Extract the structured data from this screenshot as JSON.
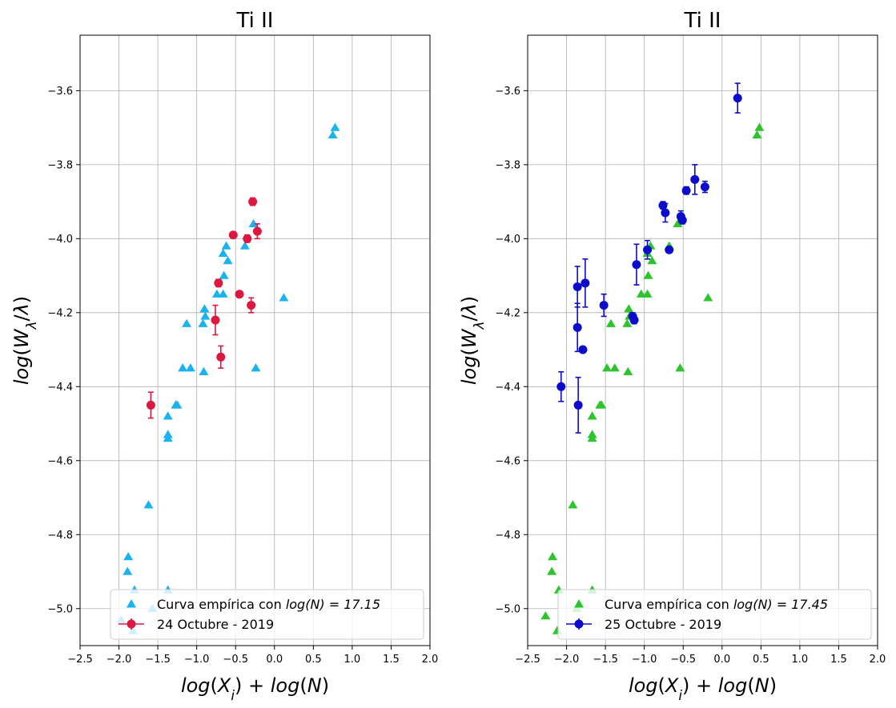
{
  "chart_data": [
    {
      "type": "scatter",
      "title": "Ti II",
      "xlabel": "log(X_i) + log(N)",
      "ylabel": "log(W_λ/λ)",
      "xlim": [
        -2.5,
        2.0
      ],
      "ylim": [
        -5.1,
        -3.45
      ],
      "xticks": [
        -2.5,
        -2.0,
        -1.5,
        -1.0,
        -0.5,
        0.0,
        0.5,
        1.0,
        1.5,
        2.0
      ],
      "xtick_labels": [
        "−2.5",
        "−2.0",
        "−1.5",
        "−1.0",
        "−0.5",
        "0.0",
        "0.5",
        "1.0",
        "1.5",
        "2.0"
      ],
      "yticks": [
        -5.0,
        -4.8,
        -4.6,
        -4.4,
        -4.2,
        -4.0,
        -3.8,
        -3.6
      ],
      "ytick_labels": [
        "−5.0",
        "−4.8",
        "−4.6",
        "−4.4",
        "−4.2",
        "−4.0",
        "−3.8",
        "−3.6"
      ],
      "grid": true,
      "legend_position": "lower-right",
      "series": [
        {
          "name": "Curva empírica con log(N) = 17.15",
          "legend_prefix": "Curva empírica con ",
          "legend_math": "log(N) = 17.15",
          "marker": "triangle",
          "color": "#1ab3ee",
          "points": [
            [
              0.78,
              -3.7
            ],
            [
              0.75,
              -3.72
            ],
            [
              -0.27,
              -3.96
            ],
            [
              -0.38,
              -4.02
            ],
            [
              -0.62,
              -4.02
            ],
            [
              -0.66,
              -4.04
            ],
            [
              -0.6,
              -4.06
            ],
            [
              0.12,
              -4.16
            ],
            [
              -0.65,
              -4.1
            ],
            [
              -0.74,
              -4.15
            ],
            [
              -0.66,
              -4.15
            ],
            [
              -0.9,
              -4.19
            ],
            [
              -1.13,
              -4.23
            ],
            [
              -0.92,
              -4.23
            ],
            [
              -0.89,
              -4.21
            ],
            [
              -1.08,
              -4.35
            ],
            [
              -1.18,
              -4.35
            ],
            [
              -0.91,
              -4.36
            ],
            [
              -0.24,
              -4.35
            ],
            [
              -1.27,
              -4.45
            ],
            [
              -1.25,
              -4.45
            ],
            [
              -1.37,
              -4.48
            ],
            [
              -1.37,
              -4.53
            ],
            [
              -1.37,
              -4.54
            ],
            [
              -1.62,
              -4.72
            ],
            [
              -1.88,
              -4.86
            ],
            [
              -1.89,
              -4.9
            ],
            [
              -1.8,
              -4.95
            ],
            [
              -1.57,
              -5.0
            ],
            [
              -1.82,
              -5.06
            ],
            [
              -1.37,
              -4.95
            ],
            [
              -1.97,
              -5.03
            ]
          ]
        },
        {
          "name": "24 Octubre - 2019",
          "marker": "circle-errorbar",
          "color": "#dc1740",
          "points": [
            [
              -0.28,
              -3.9,
              0.01
            ],
            [
              -0.53,
              -3.99,
              0.005
            ],
            [
              -0.35,
              -4.0,
              0.01
            ],
            [
              -0.22,
              -3.98,
              0.02
            ],
            [
              -0.72,
              -4.12,
              0.01
            ],
            [
              -0.45,
              -4.15,
              0.005
            ],
            [
              -0.76,
              -4.22,
              0.04
            ],
            [
              -0.3,
              -4.18,
              0.02
            ],
            [
              -0.69,
              -4.32,
              0.03
            ],
            [
              -1.59,
              -4.45,
              0.035
            ]
          ]
        }
      ]
    },
    {
      "type": "scatter",
      "title": "Ti II",
      "xlabel": "log(X_i) + log(N)",
      "ylabel": "log(W_λ/λ)",
      "xlim": [
        -2.5,
        2.0
      ],
      "ylim": [
        -5.1,
        -3.45
      ],
      "xticks": [
        -2.5,
        -2.0,
        -1.5,
        -1.0,
        -0.5,
        0.0,
        0.5,
        1.0,
        1.5,
        2.0
      ],
      "xtick_labels": [
        "−2.5",
        "−2.0",
        "−1.5",
        "−1.0",
        "−0.5",
        "0.0",
        "0.5",
        "1.0",
        "1.5",
        "2.0"
      ],
      "yticks": [
        -5.0,
        -4.8,
        -4.6,
        -4.4,
        -4.2,
        -4.0,
        -3.8,
        -3.6
      ],
      "ytick_labels": [
        "−5.0",
        "−4.8",
        "−4.6",
        "−4.4",
        "−4.2",
        "−4.0",
        "−3.8",
        "−3.6"
      ],
      "grid": true,
      "legend_position": "lower-right",
      "series": [
        {
          "name": "Curva empírica con log(N) = 17.45",
          "legend_prefix": "Curva empírica con ",
          "legend_math": "log(N) = 17.45",
          "marker": "triangle",
          "color": "#2ec42e",
          "points": [
            [
              0.48,
              -3.7
            ],
            [
              0.45,
              -3.72
            ],
            [
              -0.57,
              -3.96
            ],
            [
              -0.68,
              -4.02
            ],
            [
              -0.92,
              -4.02
            ],
            [
              -0.96,
              -4.04
            ],
            [
              -0.9,
              -4.06
            ],
            [
              -0.18,
              -4.16
            ],
            [
              -0.95,
              -4.1
            ],
            [
              -1.04,
              -4.15
            ],
            [
              -0.96,
              -4.15
            ],
            [
              -1.2,
              -4.19
            ],
            [
              -1.43,
              -4.23
            ],
            [
              -1.22,
              -4.23
            ],
            [
              -1.19,
              -4.21
            ],
            [
              -1.38,
              -4.35
            ],
            [
              -1.48,
              -4.35
            ],
            [
              -1.21,
              -4.36
            ],
            [
              -0.54,
              -4.35
            ],
            [
              -1.57,
              -4.45
            ],
            [
              -1.55,
              -4.45
            ],
            [
              -1.67,
              -4.48
            ],
            [
              -1.67,
              -4.53
            ],
            [
              -1.67,
              -4.54
            ],
            [
              -1.92,
              -4.72
            ],
            [
              -2.18,
              -4.86
            ],
            [
              -2.19,
              -4.9
            ],
            [
              -2.1,
              -4.95
            ],
            [
              -1.87,
              -5.0
            ],
            [
              -2.12,
              -5.06
            ],
            [
              -1.67,
              -4.95
            ],
            [
              -2.27,
              -5.02
            ]
          ]
        },
        {
          "name": "25 Octubre - 2019",
          "marker": "circle-errorbar",
          "color": "#0b0bcc",
          "points": [
            [
              0.2,
              -3.62,
              0.04
            ],
            [
              -0.35,
              -3.84,
              0.04
            ],
            [
              -0.22,
              -3.86,
              0.015
            ],
            [
              -0.46,
              -3.87,
              0.01
            ],
            [
              -0.76,
              -3.91,
              0.01
            ],
            [
              -0.73,
              -3.93,
              0.025
            ],
            [
              -0.53,
              -3.94,
              0.015
            ],
            [
              -0.51,
              -3.95,
              0.01
            ],
            [
              -0.96,
              -4.03,
              0.025
            ],
            [
              -0.68,
              -4.03,
              0.005
            ],
            [
              -1.1,
              -4.07,
              0.055
            ],
            [
              -1.86,
              -4.13,
              0.055
            ],
            [
              -1.76,
              -4.12,
              0.065
            ],
            [
              -1.52,
              -4.18,
              0.03
            ],
            [
              -1.15,
              -4.21,
              0.01
            ],
            [
              -1.13,
              -4.22,
              0.01
            ],
            [
              -1.86,
              -4.24,
              0.065
            ],
            [
              -1.79,
              -4.3,
              0.005
            ],
            [
              -2.07,
              -4.4,
              0.04
            ],
            [
              -1.85,
              -4.45,
              0.075
            ]
          ]
        }
      ]
    }
  ]
}
